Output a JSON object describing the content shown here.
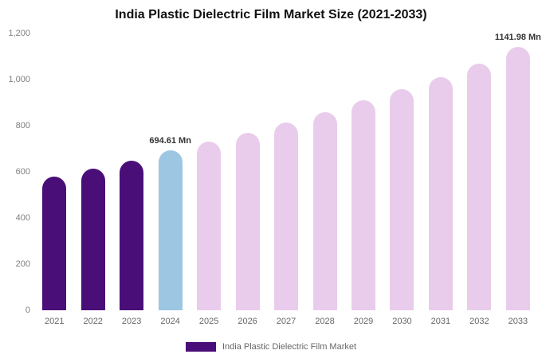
{
  "title": "India Plastic Dielectric Film Market Size (2021-2033)",
  "legend": {
    "label": "India Plastic Dielectric Film Market",
    "swatch_color": "#4A0E78"
  },
  "colors": {
    "historical": "#4A0E78",
    "current": "#9DC6E3",
    "forecast": "#E9CCEC"
  },
  "chart_data": {
    "type": "bar",
    "title": "India Plastic Dielectric Film Market Size (2021-2033)",
    "xlabel": "",
    "ylabel": "",
    "ylim": [
      0,
      1200
    ],
    "grid": false,
    "legend_position": "bottom",
    "categories": [
      "2021",
      "2022",
      "2023",
      "2024",
      "2025",
      "2026",
      "2027",
      "2028",
      "2029",
      "2030",
      "2031",
      "2032",
      "2033"
    ],
    "values": [
      580,
      615,
      650,
      694.61,
      730,
      770,
      815,
      860,
      910,
      960,
      1010,
      1070,
      1141.98
    ],
    "bar_colors": [
      "#4A0E78",
      "#4A0E78",
      "#4A0E78",
      "#9DC6E3",
      "#E9CCEC",
      "#E9CCEC",
      "#E9CCEC",
      "#E9CCEC",
      "#E9CCEC",
      "#E9CCEC",
      "#E9CCEC",
      "#E9CCEC",
      "#E9CCEC"
    ],
    "ytick_values": [
      0,
      200,
      400,
      600,
      800,
      1000,
      1200
    ],
    "ytick_labels": [
      "0",
      "200",
      "400",
      "600",
      "800",
      "1,000",
      "1,200"
    ],
    "annotations": [
      {
        "category_index": 3,
        "text": "694.61 Mn"
      },
      {
        "category_index": 12,
        "text": "1141.98 Mn"
      }
    ]
  }
}
